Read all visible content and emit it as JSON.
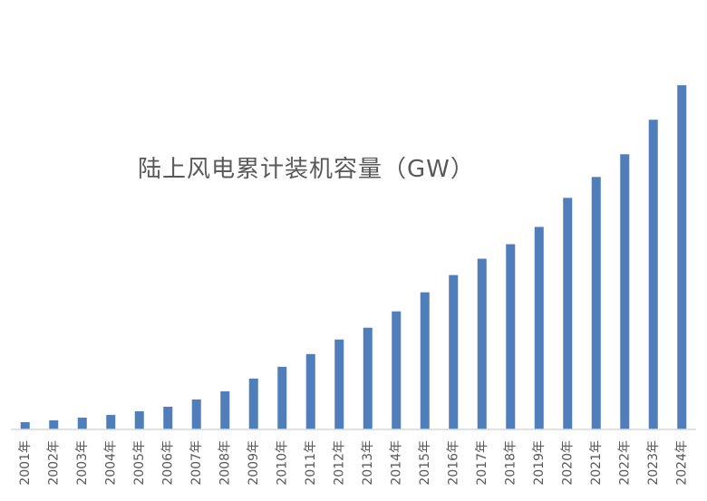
{
  "chart_data": {
    "type": "bar",
    "title": "陆上风电累计装机容量（GW）",
    "xlabel": "",
    "ylabel": "",
    "categories": [
      "2001年",
      "2002年",
      "2003年",
      "2004年",
      "2005年",
      "2006年",
      "2007年",
      "2008年",
      "2009年",
      "2010年",
      "2011年",
      "2012年",
      "2013年",
      "2014年",
      "2015年",
      "2016年",
      "2017年",
      "2018年",
      "2019年",
      "2020年",
      "2021年",
      "2022年",
      "2023年",
      "2024年"
    ],
    "values": [
      8,
      10,
      13,
      16,
      20,
      25,
      33,
      42,
      56,
      69,
      83,
      99,
      112,
      130,
      151,
      170,
      188,
      204,
      223,
      255,
      278,
      303,
      341,
      379
    ],
    "ylim": [
      0,
      420
    ],
    "grid": false,
    "legend": "none",
    "colors": {
      "bar": "#4F7EBB",
      "axis": "#D9D9D9",
      "text": "#595959"
    }
  }
}
